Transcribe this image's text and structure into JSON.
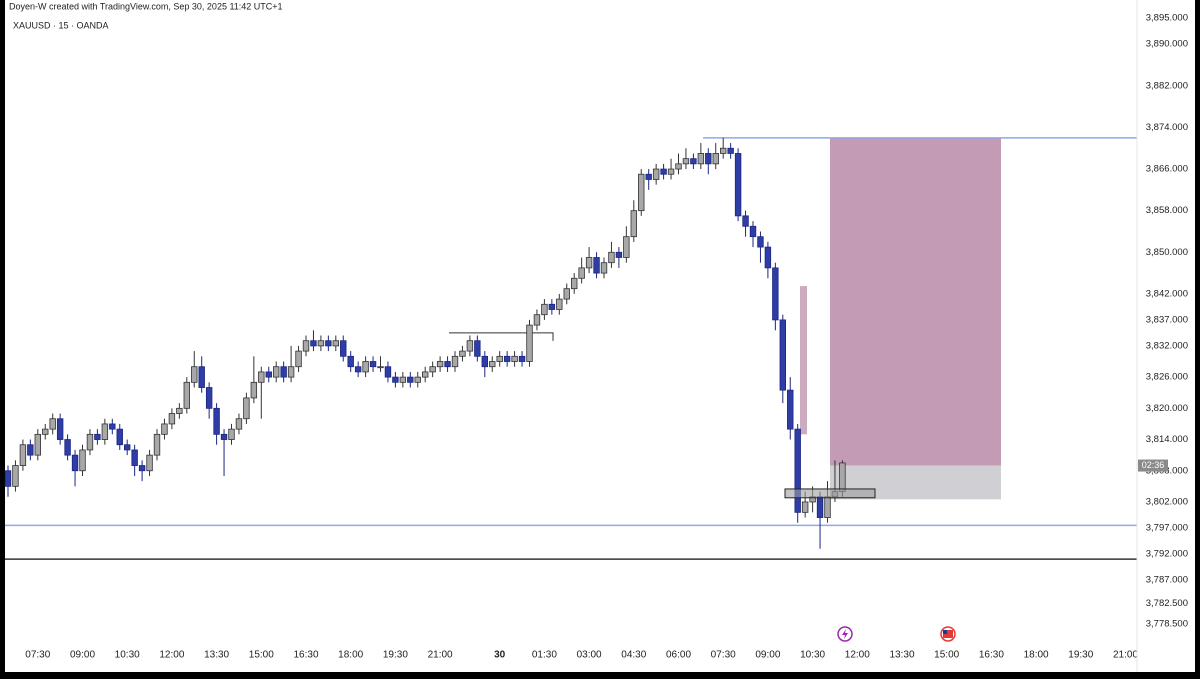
{
  "header": {
    "credit": "Doyen-W created with TradingView.com, Sep 30, 2025 11:42 UTC+1",
    "symbol": "XAUUSD · 15 · OANDA"
  },
  "chart_data": {
    "type": "candlestick",
    "up_color": "#a8a8a8",
    "down_color": "#2f3ea6",
    "ylim": [
      3774.5,
      3898.5
    ],
    "yticks": [
      {
        "value": 3895,
        "label": "3,895.000"
      },
      {
        "value": 3890,
        "label": "3,890.000"
      },
      {
        "value": 3882,
        "label": "3,882.000"
      },
      {
        "value": 3874,
        "label": "3,874.000"
      },
      {
        "value": 3866,
        "label": "3,866.000"
      },
      {
        "value": 3858,
        "label": "3,858.000"
      },
      {
        "value": 3850,
        "label": "3,850.000"
      },
      {
        "value": 3842,
        "label": "3,842.000"
      },
      {
        "value": 3837,
        "label": "3,837.000"
      },
      {
        "value": 3832,
        "label": "3,832.000"
      },
      {
        "value": 3826,
        "label": "3,826.000"
      },
      {
        "value": 3820,
        "label": "3,820.000"
      },
      {
        "value": 3814,
        "label": "3,814.000"
      },
      {
        "value": 3808,
        "label": "3,808.000"
      },
      {
        "value": 3802,
        "label": "3,802.000"
      },
      {
        "value": 3797,
        "label": "3,797.000"
      },
      {
        "value": 3792,
        "label": "3,792.000"
      },
      {
        "value": 3787,
        "label": "3,787.000"
      },
      {
        "value": 3782.5,
        "label": "3,782.500"
      },
      {
        "value": 3778.5,
        "label": "3,778.500"
      }
    ],
    "categories": [
      null,
      null,
      null,
      null,
      "07:30",
      null,
      null,
      null,
      null,
      null,
      "09:00",
      null,
      null,
      null,
      null,
      null,
      "10:30",
      null,
      null,
      null,
      null,
      null,
      "12:00",
      null,
      null,
      null,
      null,
      null,
      "13:30",
      null,
      null,
      null,
      null,
      null,
      "15:00",
      null,
      null,
      null,
      null,
      null,
      "16:30",
      null,
      null,
      null,
      null,
      null,
      "18:00",
      null,
      null,
      null,
      null,
      null,
      "19:30",
      null,
      null,
      null,
      null,
      null,
      "21:00",
      null,
      null,
      null,
      null,
      null,
      null,
      null,
      "30",
      null,
      null,
      null,
      null,
      null,
      "01:30",
      null,
      null,
      null,
      null,
      null,
      "03:00",
      null,
      null,
      null,
      null,
      null,
      "04:30",
      null,
      null,
      null,
      null,
      null,
      "06:00",
      null,
      null,
      null,
      null,
      null,
      "07:30",
      null,
      null,
      null,
      null,
      null,
      "09:00",
      null,
      null,
      null,
      null,
      null,
      "10:30",
      null,
      null,
      null,
      null,
      null,
      "12:00",
      null,
      null,
      null,
      null,
      null,
      "13:30",
      null,
      null,
      null,
      null,
      null,
      "15:00",
      null,
      null,
      null,
      null,
      null,
      "16:30",
      null,
      null,
      null,
      null,
      null,
      "18:00",
      null,
      null,
      null,
      null,
      null,
      "19:30",
      null,
      null,
      null,
      null,
      null,
      "21:00",
      null
    ],
    "candles": [
      [
        3808,
        3809,
        3803,
        3805
      ],
      [
        3805,
        3810,
        3804,
        3809
      ],
      [
        3809,
        3814,
        3808,
        3813
      ],
      [
        3813,
        3814,
        3810,
        3811
      ],
      [
        3811,
        3816,
        3810,
        3815
      ],
      [
        3815,
        3817,
        3814,
        3816
      ],
      [
        3816,
        3819,
        3815,
        3818
      ],
      [
        3818,
        3819,
        3813,
        3814
      ],
      [
        3814,
        3815,
        3810,
        3811
      ],
      [
        3811,
        3812,
        3805,
        3808
      ],
      [
        3808,
        3813,
        3807,
        3812
      ],
      [
        3812,
        3816,
        3811,
        3815
      ],
      [
        3815,
        3816,
        3813,
        3814
      ],
      [
        3814,
        3818,
        3813,
        3817
      ],
      [
        3817,
        3818,
        3815,
        3816
      ],
      [
        3816,
        3817,
        3812,
        3813
      ],
      [
        3813,
        3814,
        3811,
        3812
      ],
      [
        3812,
        3813,
        3807,
        3809
      ],
      [
        3809,
        3810,
        3806,
        3808
      ],
      [
        3808,
        3812,
        3807,
        3811
      ],
      [
        3811,
        3816,
        3810,
        3815
      ],
      [
        3815,
        3818,
        3814,
        3817
      ],
      [
        3817,
        3820,
        3816,
        3819
      ],
      [
        3819,
        3821,
        3818,
        3820
      ],
      [
        3820,
        3826,
        3819,
        3825
      ],
      [
        3825,
        3831,
        3824,
        3828
      ],
      [
        3828,
        3830,
        3823,
        3824
      ],
      [
        3824,
        3825,
        3818,
        3820
      ],
      [
        3820,
        3821,
        3813,
        3815
      ],
      [
        3815,
        3816,
        3807,
        3814
      ],
      [
        3814,
        3817,
        3813,
        3816
      ],
      [
        3816,
        3819,
        3815,
        3818
      ],
      [
        3818,
        3823,
        3817,
        3822
      ],
      [
        3822,
        3830,
        3821,
        3825
      ],
      [
        3825,
        3828,
        3818,
        3827
      ],
      [
        3827,
        3828,
        3825,
        3826
      ],
      [
        3826,
        3829,
        3825,
        3828
      ],
      [
        3828,
        3829,
        3825,
        3826
      ],
      [
        3826,
        3832,
        3825,
        3828
      ],
      [
        3828,
        3832,
        3827,
        3831
      ],
      [
        3831,
        3834,
        3830,
        3833
      ],
      [
        3833,
        3835,
        3831,
        3832
      ],
      [
        3832,
        3834,
        3831,
        3833
      ],
      [
        3833,
        3834,
        3831,
        3832
      ],
      [
        3832,
        3834,
        3831,
        3833
      ],
      [
        3833,
        3834,
        3829,
        3830
      ],
      [
        3830,
        3831,
        3827,
        3828
      ],
      [
        3828,
        3829,
        3826,
        3827
      ],
      [
        3827,
        3830,
        3826,
        3829
      ],
      [
        3829,
        3830,
        3827,
        3828
      ],
      [
        3828,
        3830,
        3827,
        3828
      ],
      [
        3828,
        3829,
        3825,
        3826
      ],
      [
        3826,
        3827,
        3824,
        3825
      ],
      [
        3825,
        3827,
        3824,
        3826
      ],
      [
        3826,
        3827,
        3824,
        3825
      ],
      [
        3825,
        3827,
        3824,
        3826
      ],
      [
        3826,
        3828,
        3825,
        3827
      ],
      [
        3827,
        3829,
        3826,
        3828
      ],
      [
        3828,
        3830,
        3827,
        3829
      ],
      [
        3829,
        3830,
        3827,
        3828
      ],
      [
        3828,
        3831,
        3827,
        3830
      ],
      [
        3830,
        3832,
        3829,
        3831
      ],
      [
        3831,
        3834,
        3830,
        3833
      ],
      [
        3833,
        3834,
        3829,
        3830
      ],
      [
        3830,
        3831,
        3826,
        3828
      ],
      [
        3828,
        3830,
        3827,
        3829
      ],
      [
        3829,
        3831,
        3828,
        3830
      ],
      [
        3830,
        3831,
        3828,
        3829
      ],
      [
        3829,
        3831,
        3828,
        3830
      ],
      [
        3830,
        3831,
        3828,
        3829
      ],
      [
        3829,
        3837,
        3828,
        3836
      ],
      [
        3836,
        3839,
        3835,
        3838
      ],
      [
        3838,
        3841,
        3837,
        3840
      ],
      [
        3840,
        3841,
        3838,
        3839
      ],
      [
        3839,
        3842,
        3838,
        3841
      ],
      [
        3841,
        3844,
        3840,
        3843
      ],
      [
        3843,
        3846,
        3842,
        3845
      ],
      [
        3845,
        3849,
        3844,
        3847
      ],
      [
        3847,
        3851,
        3846,
        3849
      ],
      [
        3849,
        3850,
        3845,
        3846
      ],
      [
        3846,
        3849,
        3845,
        3848
      ],
      [
        3848,
        3852,
        3847,
        3850
      ],
      [
        3850,
        3851,
        3847,
        3849
      ],
      [
        3849,
        3855,
        3848,
        3853
      ],
      [
        3853,
        3860,
        3852,
        3858
      ],
      [
        3858,
        3866,
        3857,
        3865
      ],
      [
        3865,
        3866,
        3862,
        3864
      ],
      [
        3864,
        3867,
        3863,
        3866
      ],
      [
        3866,
        3867,
        3864,
        3865
      ],
      [
        3865,
        3868,
        3864,
        3866
      ],
      [
        3866,
        3869,
        3865,
        3867
      ],
      [
        3867,
        3870,
        3866,
        3868
      ],
      [
        3868,
        3869,
        3866,
        3867
      ],
      [
        3867,
        3871,
        3866,
        3869
      ],
      [
        3869,
        3870,
        3865,
        3867
      ],
      [
        3867,
        3871,
        3866,
        3869
      ],
      [
        3869,
        3872,
        3868,
        3870
      ],
      [
        3870,
        3871,
        3868,
        3869
      ],
      [
        3869,
        3870,
        3856,
        3857
      ],
      [
        3857,
        3858,
        3853,
        3855
      ],
      [
        3855,
        3856,
        3851,
        3853
      ],
      [
        3853,
        3854,
        3848,
        3851
      ],
      [
        3851,
        3852,
        3845,
        3847
      ],
      [
        3847,
        3848,
        3835,
        3837
      ],
      [
        3837,
        3838,
        3821,
        3823.5
      ],
      [
        3823.5,
        3826,
        3814,
        3816
      ],
      [
        3816,
        3817,
        3798,
        3800
      ],
      [
        3800,
        3804,
        3799,
        3802
      ],
      [
        3802,
        3805,
        3800,
        3803
      ],
      [
        3803,
        3804,
        3793,
        3799
      ],
      [
        3799,
        3806,
        3798,
        3803
      ],
      [
        3803,
        3810,
        3802,
        3804
      ],
      [
        3804,
        3810,
        3803,
        3809.5
      ],
      null,
      null,
      null,
      null,
      null,
      null,
      null,
      null,
      null,
      null,
      null,
      null,
      null,
      null,
      null,
      null,
      null,
      null,
      null,
      null,
      null,
      null,
      null,
      null,
      null,
      null,
      null,
      null,
      null,
      null,
      null,
      null,
      null,
      null,
      null,
      null,
      null,
      null,
      null
    ],
    "levels": [
      {
        "price": 3872,
        "color": "#8fa8e8"
      },
      {
        "price": 3797.5,
        "color": "#8fa8e8"
      },
      {
        "price": 3791,
        "color": "#333333"
      }
    ],
    "marker_line": 3834.5,
    "position": {
      "top": 3872,
      "entry": 3809,
      "bottom": 3802.5,
      "profit_color": "#c39bb4",
      "loss_color": "#d0d0d4"
    },
    "zone": [
      3843.5,
      3815
    ],
    "entry_box": [
      3804.5,
      3802.8
    ],
    "countdown": {
      "price": 3809,
      "label": "02:36"
    }
  }
}
